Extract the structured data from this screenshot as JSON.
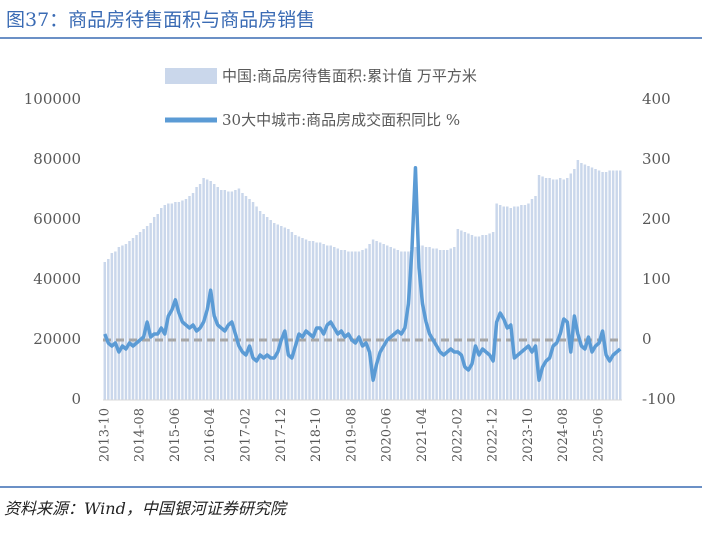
{
  "chart_data": {
    "type": "bar_line",
    "title": "图37：商品房待售面积与商品房销售",
    "source": "资料来源：Wind，中国银河证券研究院",
    "categories": [
      "2013-10",
      null,
      null,
      null,
      null,
      null,
      null,
      null,
      null,
      null,
      "2014-08",
      null,
      null,
      null,
      null,
      null,
      null,
      null,
      null,
      null,
      "2015-06",
      null,
      null,
      null,
      null,
      null,
      null,
      null,
      null,
      null,
      "2016-04",
      null,
      null,
      null,
      null,
      null,
      null,
      null,
      null,
      null,
      "2017-02",
      null,
      null,
      null,
      null,
      null,
      null,
      null,
      null,
      null,
      "2017-12",
      null,
      null,
      null,
      null,
      null,
      null,
      null,
      null,
      null,
      "2018-10",
      null,
      null,
      null,
      null,
      null,
      null,
      null,
      null,
      null,
      "2019-08",
      null,
      null,
      null,
      null,
      null,
      null,
      null,
      null,
      null,
      "2020-06",
      null,
      null,
      null,
      null,
      null,
      null,
      null,
      null,
      null,
      "2021-04",
      null,
      null,
      null,
      null,
      null,
      null,
      null,
      null,
      null,
      "2022-02",
      null,
      null,
      null,
      null,
      null,
      null,
      null,
      null,
      null,
      "2022-12",
      null,
      null,
      null,
      null,
      null,
      null,
      null,
      null,
      null,
      "2023-10",
      null,
      null,
      null,
      null,
      null,
      null,
      null,
      null,
      null,
      "2024-08",
      null,
      null,
      null,
      null,
      null,
      null,
      null,
      null,
      null,
      "2025-06",
      null,
      null,
      null,
      null,
      null,
      null
    ],
    "series": [
      {
        "name": "中国:商品房待售面积:累计值  万平方米",
        "type": "bar",
        "color": "#cad7eb",
        "values": [
          46000,
          47000,
          49000,
          49500,
          51000,
          51500,
          52000,
          53000,
          54000,
          55000,
          56000,
          57000,
          58000,
          59000,
          61000,
          62000,
          64000,
          65000,
          65500,
          65500,
          66000,
          66000,
          66500,
          67000,
          68000,
          69000,
          71000,
          72000,
          74000,
          73500,
          73000,
          72000,
          71000,
          70000,
          70000,
          69500,
          69500,
          70000,
          70500,
          69000,
          68000,
          67000,
          66000,
          64500,
          63000,
          62000,
          61000,
          60000,
          59000,
          58500,
          58000,
          57500,
          57000,
          56000,
          55000,
          54500,
          54000,
          53500,
          53000,
          53000,
          52500,
          52500,
          52000,
          51500,
          51500,
          51000,
          50500,
          50000,
          50000,
          49500,
          49500,
          49500,
          49500,
          50000,
          50500,
          52000,
          53500,
          53000,
          52500,
          52000,
          51500,
          51000,
          50500,
          50000,
          49500,
          49500,
          49500,
          50000,
          51000,
          51500,
          51500,
          51000,
          51000,
          50500,
          50500,
          50000,
          50000,
          50000,
          50500,
          51000,
          57000,
          56500,
          56000,
          55500,
          55000,
          54500,
          54500,
          55000,
          55000,
          55500,
          56000,
          65500,
          65000,
          64500,
          64500,
          64000,
          64500,
          64500,
          65000,
          65000,
          65500,
          67000,
          68000,
          75000,
          74500,
          74000,
          74000,
          73500,
          73500,
          74000,
          73500,
          74000,
          75500,
          77000,
          80000,
          79000,
          78500,
          78000,
          77500,
          77000,
          76500,
          76000,
          76000,
          76500,
          76500,
          76500,
          76500
        ]
      },
      {
        "name": "30大中城市:商品房成交面积同比 %",
        "type": "line",
        "axis": "y2",
        "color": "#5b9bd5",
        "values": [
          10,
          -5,
          -10,
          -5,
          -20,
          -10,
          -15,
          -5,
          -10,
          -5,
          0,
          5,
          30,
          5,
          10,
          10,
          20,
          10,
          40,
          50,
          67,
          45,
          30,
          25,
          20,
          25,
          15,
          20,
          30,
          50,
          83,
          40,
          25,
          20,
          15,
          25,
          30,
          10,
          -10,
          -20,
          -25,
          -10,
          -30,
          -35,
          -25,
          -30,
          -25,
          -30,
          -30,
          -20,
          0,
          15,
          -25,
          -30,
          -10,
          10,
          5,
          15,
          10,
          5,
          20,
          20,
          10,
          25,
          30,
          20,
          10,
          15,
          5,
          10,
          0,
          -5,
          5,
          -10,
          -5,
          -20,
          -67,
          -40,
          -20,
          -10,
          0,
          5,
          10,
          15,
          10,
          20,
          60,
          150,
          287,
          120,
          60,
          30,
          10,
          0,
          -10,
          -20,
          -25,
          -20,
          -15,
          -20,
          -20,
          -25,
          -45,
          -50,
          -40,
          -10,
          -25,
          -15,
          -20,
          -25,
          -35,
          30,
          45,
          35,
          20,
          25,
          -30,
          -25,
          -20,
          -15,
          -10,
          -20,
          -10,
          -67,
          -45,
          -35,
          -30,
          -10,
          -5,
          10,
          35,
          30,
          -20,
          40,
          10,
          -10,
          -15,
          5,
          -20,
          -10,
          -5,
          15,
          -25,
          -35,
          -25,
          -20,
          -15
        ]
      }
    ],
    "ylim": [
      0,
      100000
    ],
    "yticks": [
      0,
      20000,
      40000,
      60000,
      80000,
      100000
    ],
    "y2lim": [
      -100,
      400
    ],
    "y2ticks": [
      -100,
      0,
      100,
      200,
      300,
      400
    ],
    "y2_reference_line": 0,
    "reference_color": "#a6a6a6"
  }
}
